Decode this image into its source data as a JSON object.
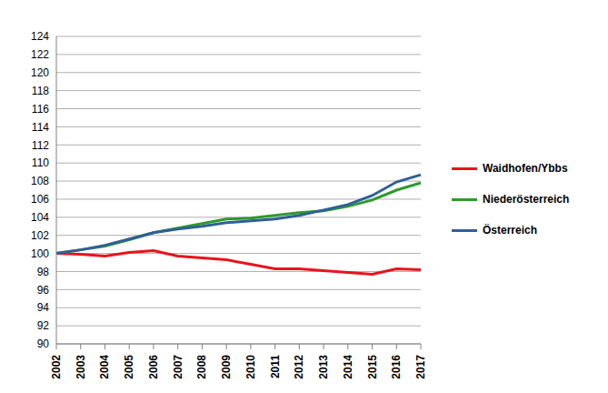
{
  "chart_data": {
    "type": "line",
    "categories": [
      "2002",
      "2003",
      "2004",
      "2005",
      "2006",
      "2007",
      "2008",
      "2009",
      "2010",
      "2011",
      "2012",
      "2013",
      "2014",
      "2015",
      "2016",
      "2017"
    ],
    "series": [
      {
        "name": "Waidhofen/Ybbs",
        "color": "#e8141c",
        "values": [
          100,
          99.9,
          99.7,
          100.1,
          100.3,
          99.7,
          99.5,
          99.3,
          98.8,
          98.3,
          98.3,
          98.1,
          97.9,
          97.7,
          98.3,
          98.2
        ]
      },
      {
        "name": "Niederösterreich",
        "color": "#2e9a2e",
        "values": [
          100,
          100.4,
          100.8,
          101.5,
          102.3,
          102.8,
          103.3,
          103.8,
          103.9,
          104.2,
          104.5,
          104.7,
          105.2,
          105.9,
          107.0,
          107.8
        ]
      },
      {
        "name": "Österreich",
        "color": "#2f5f98",
        "values": [
          100,
          100.4,
          100.9,
          101.6,
          102.3,
          102.7,
          103.0,
          103.4,
          103.6,
          103.8,
          104.2,
          104.8,
          105.4,
          106.4,
          107.9,
          108.7
        ]
      }
    ],
    "ylim": [
      90,
      124
    ],
    "yticks": [
      90,
      92,
      94,
      96,
      98,
      100,
      102,
      104,
      106,
      108,
      110,
      112,
      114,
      116,
      118,
      120,
      122,
      124
    ],
    "grid": true,
    "legend": "right"
  }
}
